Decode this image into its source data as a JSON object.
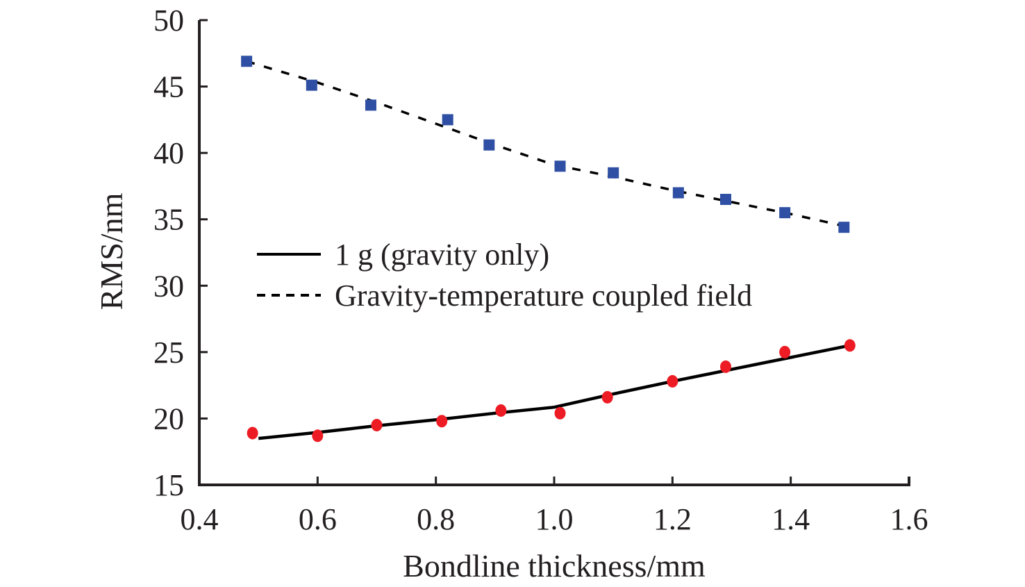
{
  "chart_data": {
    "type": "line",
    "title": "",
    "xlabel": "Bondline thickness/mm",
    "ylabel": "RMS/nm",
    "xlim": [
      0.4,
      1.6
    ],
    "ylim": [
      15,
      50
    ],
    "xticks": [
      "0.4",
      "0.6",
      "0.8",
      "1.0",
      "1.2",
      "1.4",
      "1.6"
    ],
    "yticks": [
      "15",
      "20",
      "25",
      "30",
      "35",
      "40",
      "45",
      "50"
    ],
    "grid": false,
    "legend_position": "center-left",
    "series": [
      {
        "name": "1 g (gravity only)",
        "line_style": "solid",
        "marker": "circle",
        "marker_color": "#ed1c24",
        "line_color": "#000000",
        "x": [
          0.49,
          0.6,
          0.7,
          0.81,
          0.91,
          1.01,
          1.09,
          1.2,
          1.29,
          1.39,
          1.5
        ],
        "y": [
          18.9,
          18.7,
          19.5,
          19.8,
          20.6,
          20.4,
          21.6,
          22.8,
          23.9,
          25.0,
          25.5
        ],
        "fit_x": [
          0.5,
          0.6,
          0.7,
          0.8,
          0.9,
          1.0,
          1.1,
          1.2,
          1.3,
          1.4,
          1.5
        ],
        "fit_y": [
          18.5,
          18.95,
          19.45,
          19.9,
          20.4,
          20.85,
          21.85,
          22.8,
          23.7,
          24.6,
          25.5
        ]
      },
      {
        "name": "Gravity-temperature coupled field",
        "line_style": "dashed",
        "marker": "square",
        "marker_color": "#2e4fa3",
        "line_color": "#000000",
        "x": [
          0.48,
          0.59,
          0.69,
          0.82,
          0.89,
          1.01,
          1.1,
          1.21,
          1.29,
          1.39,
          1.49
        ],
        "y": [
          46.9,
          45.1,
          43.6,
          42.5,
          40.6,
          39.0,
          38.5,
          37.0,
          36.5,
          35.5,
          34.4
        ],
        "fit_x": [
          0.48,
          0.6,
          0.7,
          0.8,
          0.9,
          1.0,
          1.1,
          1.2,
          1.3,
          1.4,
          1.5
        ],
        "fit_y": [
          46.9,
          45.3,
          43.8,
          42.2,
          40.6,
          39.1,
          38.2,
          37.2,
          36.3,
          35.4,
          34.4
        ]
      }
    ]
  }
}
